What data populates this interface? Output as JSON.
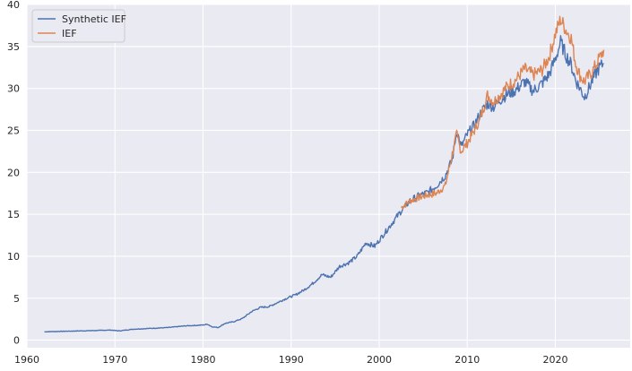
{
  "chart_data": {
    "type": "line",
    "title": "",
    "xlabel": "",
    "ylabel": "",
    "xlim": [
      1960.0,
      2028.5
    ],
    "ylim": [
      -0.9,
      40
    ],
    "xticks": [
      1960,
      1970,
      1980,
      1990,
      2000,
      2010,
      2020
    ],
    "yticks": [
      0,
      5,
      10,
      15,
      20,
      25,
      30,
      35,
      40
    ],
    "grid": true,
    "legend_position": "top-left",
    "series": [
      {
        "name": "Synthetic IEF",
        "color": "#4c72b0",
        "x": [
          1962.0,
          1964.0,
          1966.0,
          1968.0,
          1969.5,
          1970.5,
          1972.0,
          1974.0,
          1976.0,
          1978.0,
          1980.0,
          1980.5,
          1981.0,
          1981.7,
          1982.5,
          1983.5,
          1984.5,
          1985.5,
          1986.5,
          1987.5,
          1988.5,
          1989.5,
          1990.5,
          1991.5,
          1992.5,
          1993.5,
          1994.5,
          1995.5,
          1996.5,
          1997.5,
          1998.5,
          1999.5,
          2000.5,
          2001.5,
          2002.5,
          2003.5,
          2004.5,
          2005.5,
          2006.5,
          2007.5,
          2008.3,
          2008.8,
          2009.3,
          2010.0,
          2010.8,
          2011.5,
          2012.3,
          2013.0,
          2013.7,
          2014.5,
          2015.5,
          2016.5,
          2017.5,
          2018.5,
          2019.3,
          2020.0,
          2020.6,
          2021.2,
          2021.8,
          2022.3,
          2022.8,
          2023.3,
          2023.8,
          2024.3,
          2024.8,
          2025.5
        ],
        "y": [
          1.0,
          1.05,
          1.1,
          1.15,
          1.2,
          1.1,
          1.3,
          1.4,
          1.5,
          1.7,
          1.8,
          1.9,
          1.6,
          1.5,
          2.0,
          2.2,
          2.6,
          3.4,
          3.9,
          4.0,
          4.5,
          5.0,
          5.4,
          6.0,
          6.8,
          7.8,
          7.5,
          8.8,
          9.2,
          10.0,
          11.6,
          11.2,
          12.6,
          14.0,
          15.4,
          16.6,
          17.2,
          17.6,
          18.4,
          19.6,
          21.5,
          25.0,
          23.0,
          24.5,
          25.6,
          27.0,
          28.2,
          27.8,
          28.6,
          29.3,
          29.8,
          30.8,
          29.7,
          30.6,
          31.7,
          33.5,
          35.5,
          34.0,
          32.8,
          31.0,
          30.0,
          29.0,
          30.0,
          31.2,
          32.2,
          33.0
        ]
      },
      {
        "name": "IEF",
        "color": "#dd8452",
        "x": [
          2002.5,
          2003.5,
          2004.5,
          2005.5,
          2006.5,
          2007.5,
          2008.3,
          2008.8,
          2009.3,
          2010.0,
          2010.8,
          2011.5,
          2012.3,
          2013.0,
          2013.7,
          2014.5,
          2015.5,
          2016.5,
          2017.5,
          2018.5,
          2019.3,
          2020.0,
          2020.6,
          2021.2,
          2021.8,
          2022.3,
          2022.8,
          2023.3,
          2023.8,
          2024.3,
          2024.8,
          2025.5
        ],
        "y": [
          15.8,
          16.6,
          17.0,
          17.3,
          17.5,
          18.4,
          22.2,
          24.5,
          22.5,
          23.5,
          25.0,
          26.5,
          29.2,
          28.4,
          29.2,
          30.2,
          31.0,
          32.3,
          31.6,
          32.2,
          33.8,
          36.5,
          38.2,
          37.0,
          36.0,
          33.0,
          31.5,
          30.8,
          31.5,
          32.2,
          33.2,
          34.6
        ]
      }
    ]
  }
}
